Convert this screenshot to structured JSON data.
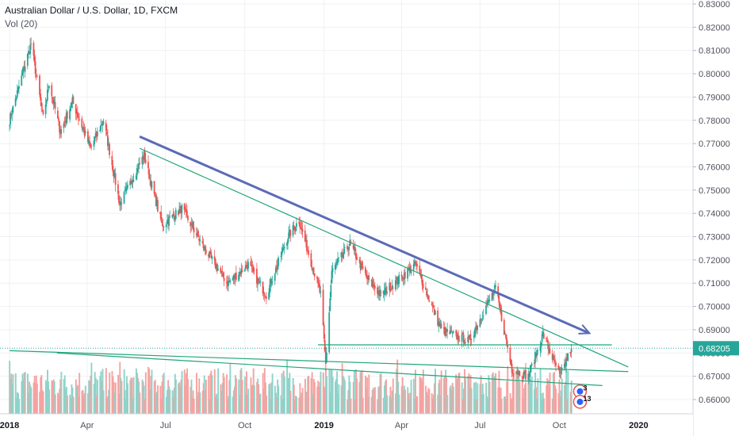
{
  "header": {
    "symbol_title": "Australian Dollar / U.S. Dollar, 1D, FXCM",
    "volume_label": "Vol (20)"
  },
  "colors": {
    "up": "#26a69a",
    "down": "#ef5350",
    "vol_up": "#8fd3ca",
    "vol_down": "#f5a3a1",
    "trend_blue": "#5b6bb5",
    "trend_green": "#22a67b",
    "price_tag": "#26a69a",
    "grid": "#eef1f4",
    "axis_text": "#50535e"
  },
  "chart_data": {
    "type": "candlestick",
    "title": "Australian Dollar / U.S. Dollar, 1D, FXCM",
    "y_axis": {
      "ticks": [
        "0.83000",
        "0.82000",
        "0.81000",
        "0.80000",
        "0.79000",
        "0.78000",
        "0.77000",
        "0.76000",
        "0.75000",
        "0.74000",
        "0.73000",
        "0.72000",
        "0.71000",
        "0.70000",
        "0.69000",
        "0.68000",
        "0.67000",
        "0.66000"
      ],
      "range": [
        0.6555,
        0.8315
      ]
    },
    "x_axis": {
      "labels": [
        "2018",
        "Apr",
        "Jul",
        "Oct",
        "2019",
        "Apr",
        "Jul",
        "Oct",
        "2020"
      ],
      "range": [
        "2018-01-01",
        "2020-01-20"
      ]
    },
    "last_price": "0.68205",
    "price_path": [
      {
        "date": "2018-01-01",
        "close": 0.78
      },
      {
        "date": "2018-01-26",
        "close": 0.813
      },
      {
        "date": "2018-02-09",
        "close": 0.781
      },
      {
        "date": "2018-02-16",
        "close": 0.796
      },
      {
        "date": "2018-03-01",
        "close": 0.775
      },
      {
        "date": "2018-03-15",
        "close": 0.788
      },
      {
        "date": "2018-04-05",
        "close": 0.768
      },
      {
        "date": "2018-04-20",
        "close": 0.78
      },
      {
        "date": "2018-05-09",
        "close": 0.744
      },
      {
        "date": "2018-06-06",
        "close": 0.765
      },
      {
        "date": "2018-06-27",
        "close": 0.735
      },
      {
        "date": "2018-07-20",
        "close": 0.742
      },
      {
        "date": "2018-08-15",
        "close": 0.725
      },
      {
        "date": "2018-09-11",
        "close": 0.71
      },
      {
        "date": "2018-10-05",
        "close": 0.718
      },
      {
        "date": "2018-10-26",
        "close": 0.705
      },
      {
        "date": "2018-11-20",
        "close": 0.73
      },
      {
        "date": "2018-12-03",
        "close": 0.737
      },
      {
        "date": "2018-12-28",
        "close": 0.705
      },
      {
        "date": "2019-01-03",
        "close": 0.675
      },
      {
        "date": "2019-01-10",
        "close": 0.715
      },
      {
        "date": "2019-01-31",
        "close": 0.727
      },
      {
        "date": "2019-02-20",
        "close": 0.712
      },
      {
        "date": "2019-03-08",
        "close": 0.705
      },
      {
        "date": "2019-04-17",
        "close": 0.718
      },
      {
        "date": "2019-05-17",
        "close": 0.69
      },
      {
        "date": "2019-06-18",
        "close": 0.685
      },
      {
        "date": "2019-07-19",
        "close": 0.708
      },
      {
        "date": "2019-08-07",
        "close": 0.673
      },
      {
        "date": "2019-08-26",
        "close": 0.67
      },
      {
        "date": "2019-09-12",
        "close": 0.688
      },
      {
        "date": "2019-10-02",
        "close": 0.67
      },
      {
        "date": "2019-10-15",
        "close": 0.682
      }
    ],
    "trend_lines": [
      {
        "color": "blue",
        "arrow": true,
        "points": [
          {
            "date": "2018-06-01",
            "price": 0.773
          },
          {
            "date": "2019-11-05",
            "price": 0.6885
          }
        ]
      },
      {
        "color": "green",
        "points": [
          {
            "date": "2018-06-01",
            "price": 0.768
          },
          {
            "date": "2019-12-20",
            "price": 0.674
          }
        ]
      },
      {
        "color": "green",
        "points": [
          {
            "date": "2018-01-01",
            "price": 0.681
          },
          {
            "date": "2019-12-20",
            "price": 0.672
          }
        ]
      },
      {
        "color": "green",
        "points": [
          {
            "date": "2018-12-25",
            "price": 0.6835
          },
          {
            "date": "2019-12-01",
            "price": 0.6835
          }
        ]
      },
      {
        "color": "green",
        "points": [
          {
            "date": "2018-02-25",
            "price": 0.68
          },
          {
            "date": "2019-11-20",
            "price": 0.666
          }
        ]
      }
    ],
    "event_badges": [
      {
        "label": "3",
        "date": "2019-10-25",
        "price": 0.6635
      },
      {
        "label": "13",
        "date": "2019-10-25",
        "price": 0.659
      }
    ]
  }
}
